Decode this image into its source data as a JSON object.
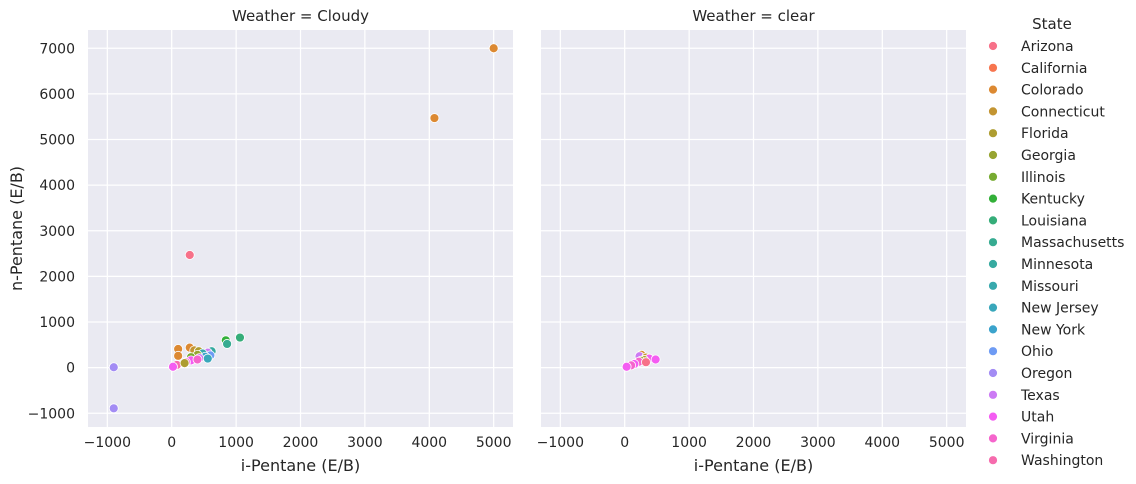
{
  "chart_data": {
    "type": "scatter",
    "hue_title": "State",
    "ylabel": "n-Pentane (E/B)",
    "xlim": [
      -1300,
      5300
    ],
    "ylim": [
      -1300,
      7400
    ],
    "x_ticks": [
      -1000,
      0,
      1000,
      2000,
      3000,
      4000,
      5000
    ],
    "y_ticks": [
      -1000,
      0,
      1000,
      2000,
      3000,
      4000,
      5000,
      6000,
      7000
    ],
    "x_tick_labels": [
      "−1000",
      "0",
      "1000",
      "2000",
      "3000",
      "4000",
      "5000"
    ],
    "y_tick_labels": [
      "−1000",
      "0",
      "1000",
      "2000",
      "3000",
      "4000",
      "5000",
      "6000",
      "7000"
    ],
    "grid": true,
    "legend_position": "right",
    "states": [
      {
        "name": "Arizona",
        "color": "#f77189"
      },
      {
        "name": "California",
        "color": "#f7754f"
      },
      {
        "name": "Colorado",
        "color": "#dc8932"
      },
      {
        "name": "Connecticut",
        "color": "#c39532"
      },
      {
        "name": "Florida",
        "color": "#ae9d31"
      },
      {
        "name": "Georgia",
        "color": "#97a431"
      },
      {
        "name": "Illinois",
        "color": "#77ab31"
      },
      {
        "name": "Kentucky",
        "color": "#33b039"
      },
      {
        "name": "Louisiana",
        "color": "#35ad79"
      },
      {
        "name": "Massachusetts",
        "color": "#36ab91"
      },
      {
        "name": "Minnesota",
        "color": "#37aaa0"
      },
      {
        "name": "Missouri",
        "color": "#38a9ad"
      },
      {
        "name": "New Jersey",
        "color": "#39a7bb"
      },
      {
        "name": "New York",
        "color": "#3ba3cc"
      },
      {
        "name": "Ohio",
        "color": "#6e9bf4"
      },
      {
        "name": "Oregon",
        "color": "#a38cf4"
      },
      {
        "name": "Texas",
        "color": "#cc7af4"
      },
      {
        "name": "Utah",
        "color": "#f45cf2"
      },
      {
        "name": "Virginia",
        "color": "#f565cc"
      },
      {
        "name": "Washington",
        "color": "#f66bad"
      }
    ],
    "panels": [
      {
        "title": "Weather = Cloudy",
        "xlabel": "i-Pentane (E/B)",
        "points": [
          {
            "x": 5000,
            "y": 7000,
            "state": "Colorado"
          },
          {
            "x": 4080,
            "y": 5470,
            "state": "Colorado"
          },
          {
            "x": 280,
            "y": 2470,
            "state": "Arizona"
          },
          {
            "x": 1060,
            "y": 660,
            "state": "Louisiana"
          },
          {
            "x": 840,
            "y": 600,
            "state": "Kentucky"
          },
          {
            "x": 860,
            "y": 520,
            "state": "Massachusetts"
          },
          {
            "x": 280,
            "y": 440,
            "state": "Colorado"
          },
          {
            "x": 100,
            "y": 410,
            "state": "Colorado"
          },
          {
            "x": 350,
            "y": 380,
            "state": "Connecticut"
          },
          {
            "x": 420,
            "y": 360,
            "state": "Florida"
          },
          {
            "x": 620,
            "y": 360,
            "state": "Minnesota"
          },
          {
            "x": 560,
            "y": 330,
            "state": "Texas"
          },
          {
            "x": 480,
            "y": 310,
            "state": "Missouri"
          },
          {
            "x": 100,
            "y": 260,
            "state": "Colorado"
          },
          {
            "x": 400,
            "y": 280,
            "state": "Georgia"
          },
          {
            "x": 600,
            "y": 270,
            "state": "Ohio"
          },
          {
            "x": 520,
            "y": 240,
            "state": "New York"
          },
          {
            "x": 300,
            "y": 230,
            "state": "Illinois"
          },
          {
            "x": 430,
            "y": 210,
            "state": "Texas"
          },
          {
            "x": 560,
            "y": 200,
            "state": "New Jersey"
          },
          {
            "x": 300,
            "y": 160,
            "state": "Utah"
          },
          {
            "x": 220,
            "y": 120,
            "state": "Virginia"
          },
          {
            "x": 80,
            "y": 60,
            "state": "Washington"
          },
          {
            "x": 20,
            "y": 20,
            "state": "Utah"
          },
          {
            "x": 400,
            "y": 180,
            "state": "Virginia"
          },
          {
            "x": 200,
            "y": 100,
            "state": "Florida"
          },
          {
            "x": -900,
            "y": 10,
            "state": "Oregon"
          },
          {
            "x": -900,
            "y": -890,
            "state": "Oregon"
          }
        ]
      },
      {
        "title": "Weather = clear",
        "xlabel": "i-Pentane (E/B)",
        "points": [
          {
            "x": 260,
            "y": 280,
            "state": "Colorado"
          },
          {
            "x": 230,
            "y": 250,
            "state": "Texas"
          },
          {
            "x": 330,
            "y": 220,
            "state": "Connecticut"
          },
          {
            "x": 380,
            "y": 200,
            "state": "Utah"
          },
          {
            "x": 480,
            "y": 180,
            "state": "Utah"
          },
          {
            "x": 300,
            "y": 170,
            "state": "Florida"
          },
          {
            "x": 250,
            "y": 150,
            "state": "Georgia"
          },
          {
            "x": 220,
            "y": 130,
            "state": "Virginia"
          },
          {
            "x": 330,
            "y": 120,
            "state": "Arizona"
          },
          {
            "x": 150,
            "y": 80,
            "state": "Utah"
          },
          {
            "x": 100,
            "y": 50,
            "state": "Virginia"
          },
          {
            "x": 30,
            "y": 20,
            "state": "Utah"
          }
        ]
      }
    ]
  }
}
